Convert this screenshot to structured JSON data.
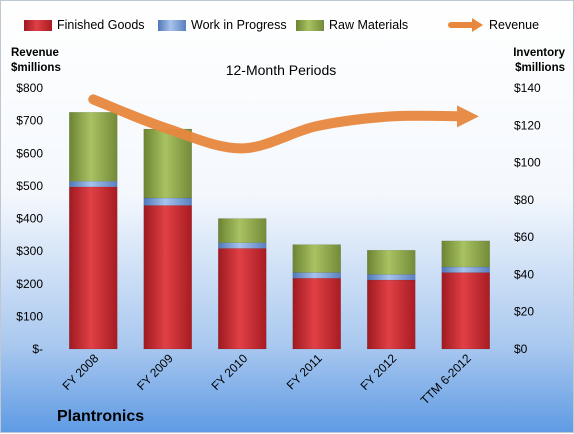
{
  "chart_data": {
    "type": "bar",
    "stacked": true,
    "subtitle": "12-Month Periods",
    "company": "Plantronics",
    "categories": [
      "FY 2008",
      "FY 2009",
      "FY 2010",
      "FY 2011",
      "FY 2012",
      "TTM 6-2012"
    ],
    "left_axis": {
      "title_line1": "Revenue",
      "title_line2": "$millions",
      "range": [
        0,
        800
      ],
      "ticks": [
        0,
        100,
        200,
        300,
        400,
        500,
        600,
        700,
        800
      ],
      "tick_labels": [
        "$-",
        "$100",
        "$200",
        "$300",
        "$400",
        "$500",
        "$600",
        "$700",
        "$800"
      ]
    },
    "right_axis": {
      "title_line1": "Inventory",
      "title_line2": "$millions",
      "range": [
        0,
        140
      ],
      "ticks": [
        0,
        20,
        40,
        60,
        80,
        100,
        120,
        140
      ],
      "tick_labels": [
        "$0",
        "$20",
        "$40",
        "$60",
        "$80",
        "$100",
        "$120",
        "$140"
      ]
    },
    "series": [
      {
        "name": "Finished Goods",
        "axis": "right",
        "color": "#c8262e",
        "values": [
          87,
          77,
          54,
          38,
          37,
          41
        ]
      },
      {
        "name": "Work in Progress",
        "axis": "right",
        "color": "#6f97d6",
        "values": [
          3,
          4,
          3,
          3,
          3,
          3
        ]
      },
      {
        "name": "Raw Materials",
        "axis": "right",
        "color": "#89a24a",
        "values": [
          37,
          37,
          13,
          15,
          13,
          14
        ]
      },
      {
        "name": "Revenue",
        "axis": "left",
        "type": "line",
        "color": "#e8883f",
        "values": [
          765,
          675,
          615,
          683,
          713,
          713
        ]
      }
    ],
    "legend_position": "top",
    "grid": false
  }
}
